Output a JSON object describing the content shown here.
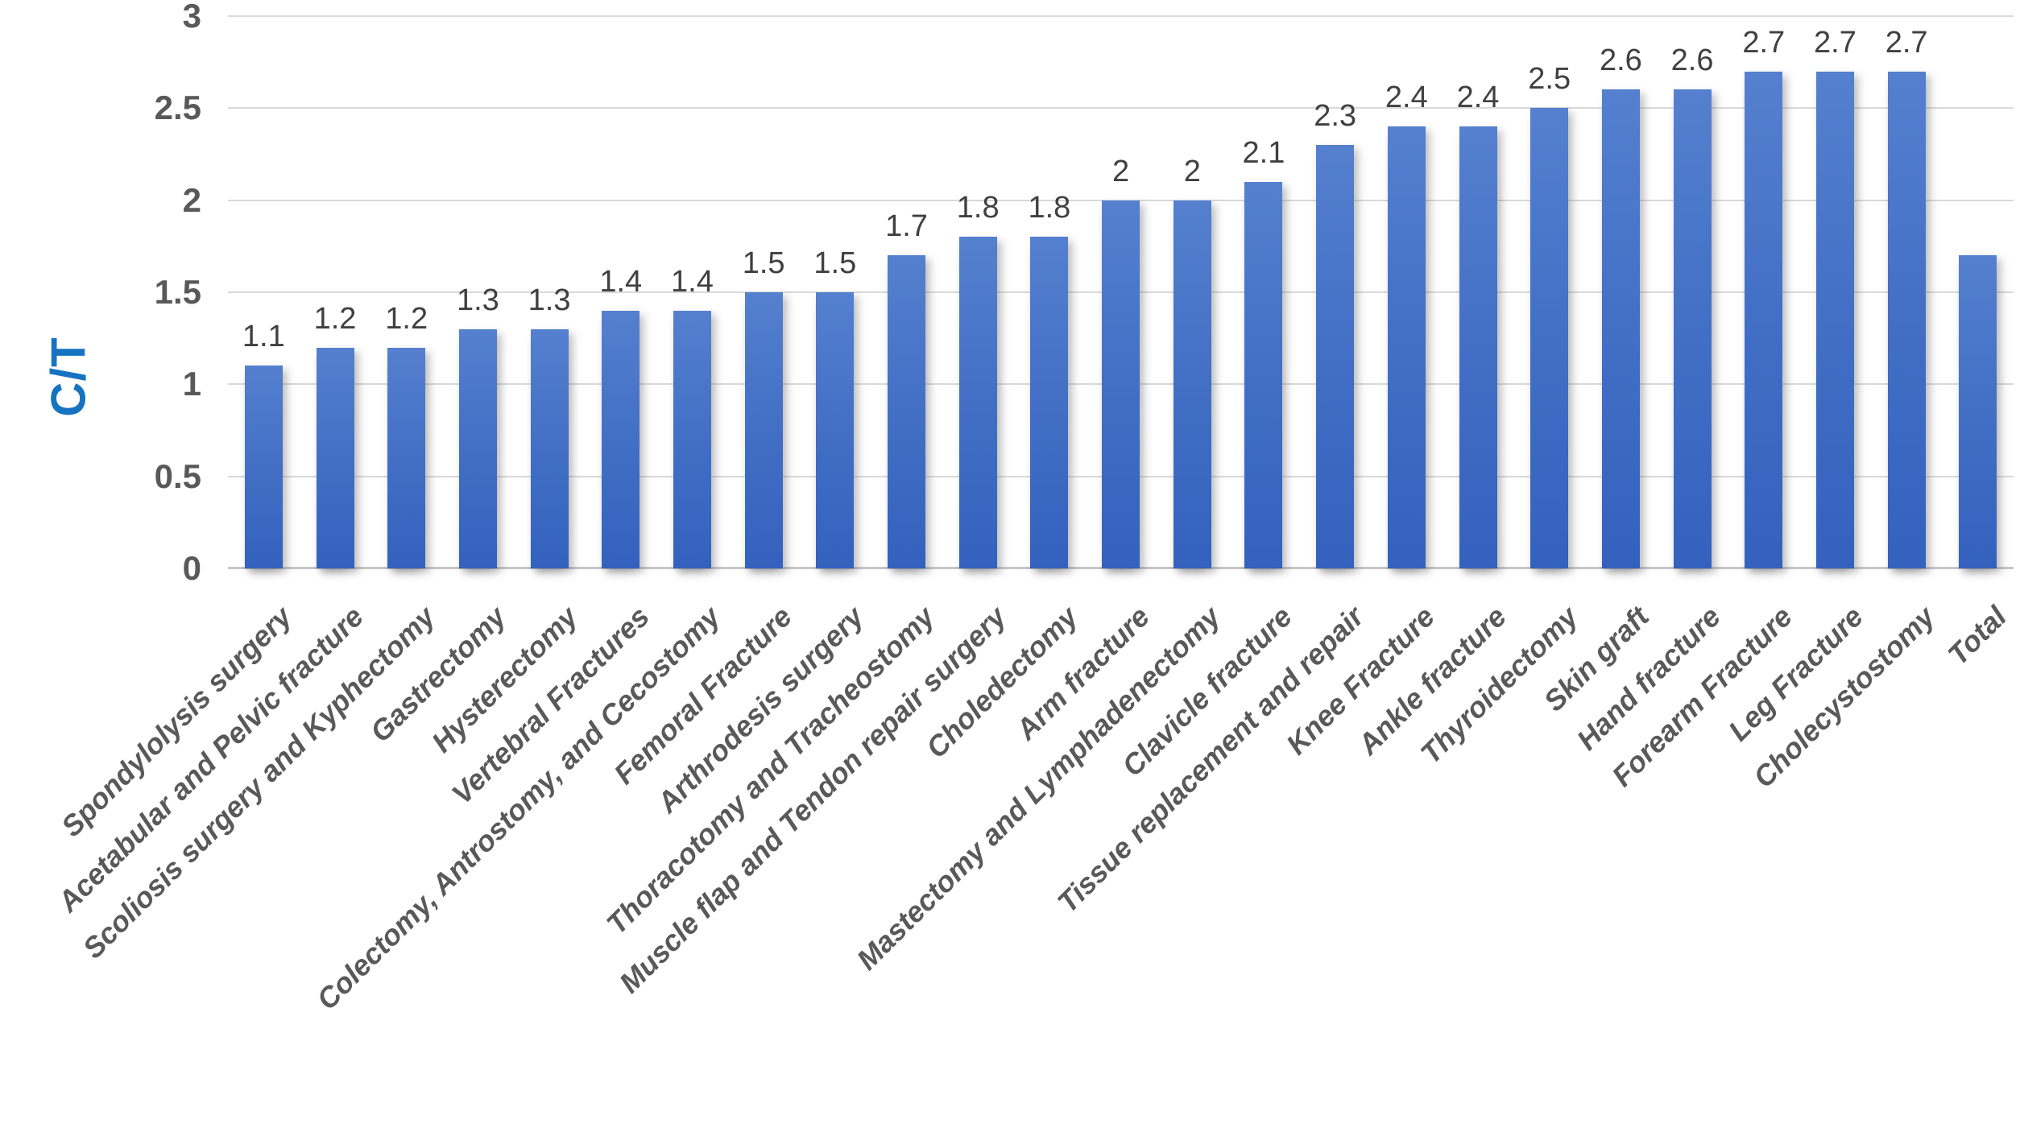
{
  "chart_data": {
    "type": "bar",
    "title": "",
    "xlabel": "",
    "ylabel": "C/T",
    "categories": [
      "Spondylolysis surgery",
      "Acetabular and Pelvic fracture",
      "Scoliosis surgery and Kyphectomy",
      "Gastrectomy",
      "Hysterectomy",
      "Vertebral Fractures",
      "Colectomy, Antrostomy, and Cecostomy",
      "Femoral Fracture",
      "Arthrodesis surgery",
      "Thoracotomy and Tracheostomy",
      "Muscle flap and Tendon repair surgery",
      "Choledectomy",
      "Arm fracture",
      "Mastectomy and Lymphadenectomy",
      "Clavicle fracture",
      "Tissue replacement and repair",
      "Knee Fracture",
      "Ankle fracture",
      "Thyroidectomy",
      "Skin graft",
      "Hand fracture",
      "Forearm Fracture",
      "Leg Fracture",
      "Cholecystostomy",
      "Total"
    ],
    "values": [
      1.1,
      1.2,
      1.2,
      1.3,
      1.3,
      1.4,
      1.4,
      1.5,
      1.5,
      1.7,
      1.8,
      1.8,
      2,
      2,
      2.1,
      2.3,
      2.4,
      2.4,
      2.5,
      2.6,
      2.6,
      2.7,
      2.7,
      2.7,
      1.7
    ],
    "data_labels": [
      "1.1",
      "1.2",
      "1.2",
      "1.3",
      "1.3",
      "1.4",
      "1.4",
      "1.5",
      "1.5",
      "1.7",
      "1.8",
      "1.8",
      "2",
      "2",
      "2.1",
      "2.3",
      "2.4",
      "2.4",
      "2.5",
      "2.6",
      "2.6",
      "2.7",
      "2.7",
      "2.7",
      ""
    ],
    "ylim": [
      0,
      3
    ],
    "yticks": [
      "0",
      "0.5",
      "1",
      "1.5",
      "2",
      "2.5",
      "3"
    ],
    "grid": true,
    "legend": "none",
    "bar_color_top": "#5580CF",
    "bar_color_bottom": "#3361BD",
    "ylabel_color": "#1673C1",
    "tick_color": "#595959",
    "data_label_color": "#404040",
    "category_label_color": "#595959",
    "gridline_color": "#D9D9D9"
  }
}
